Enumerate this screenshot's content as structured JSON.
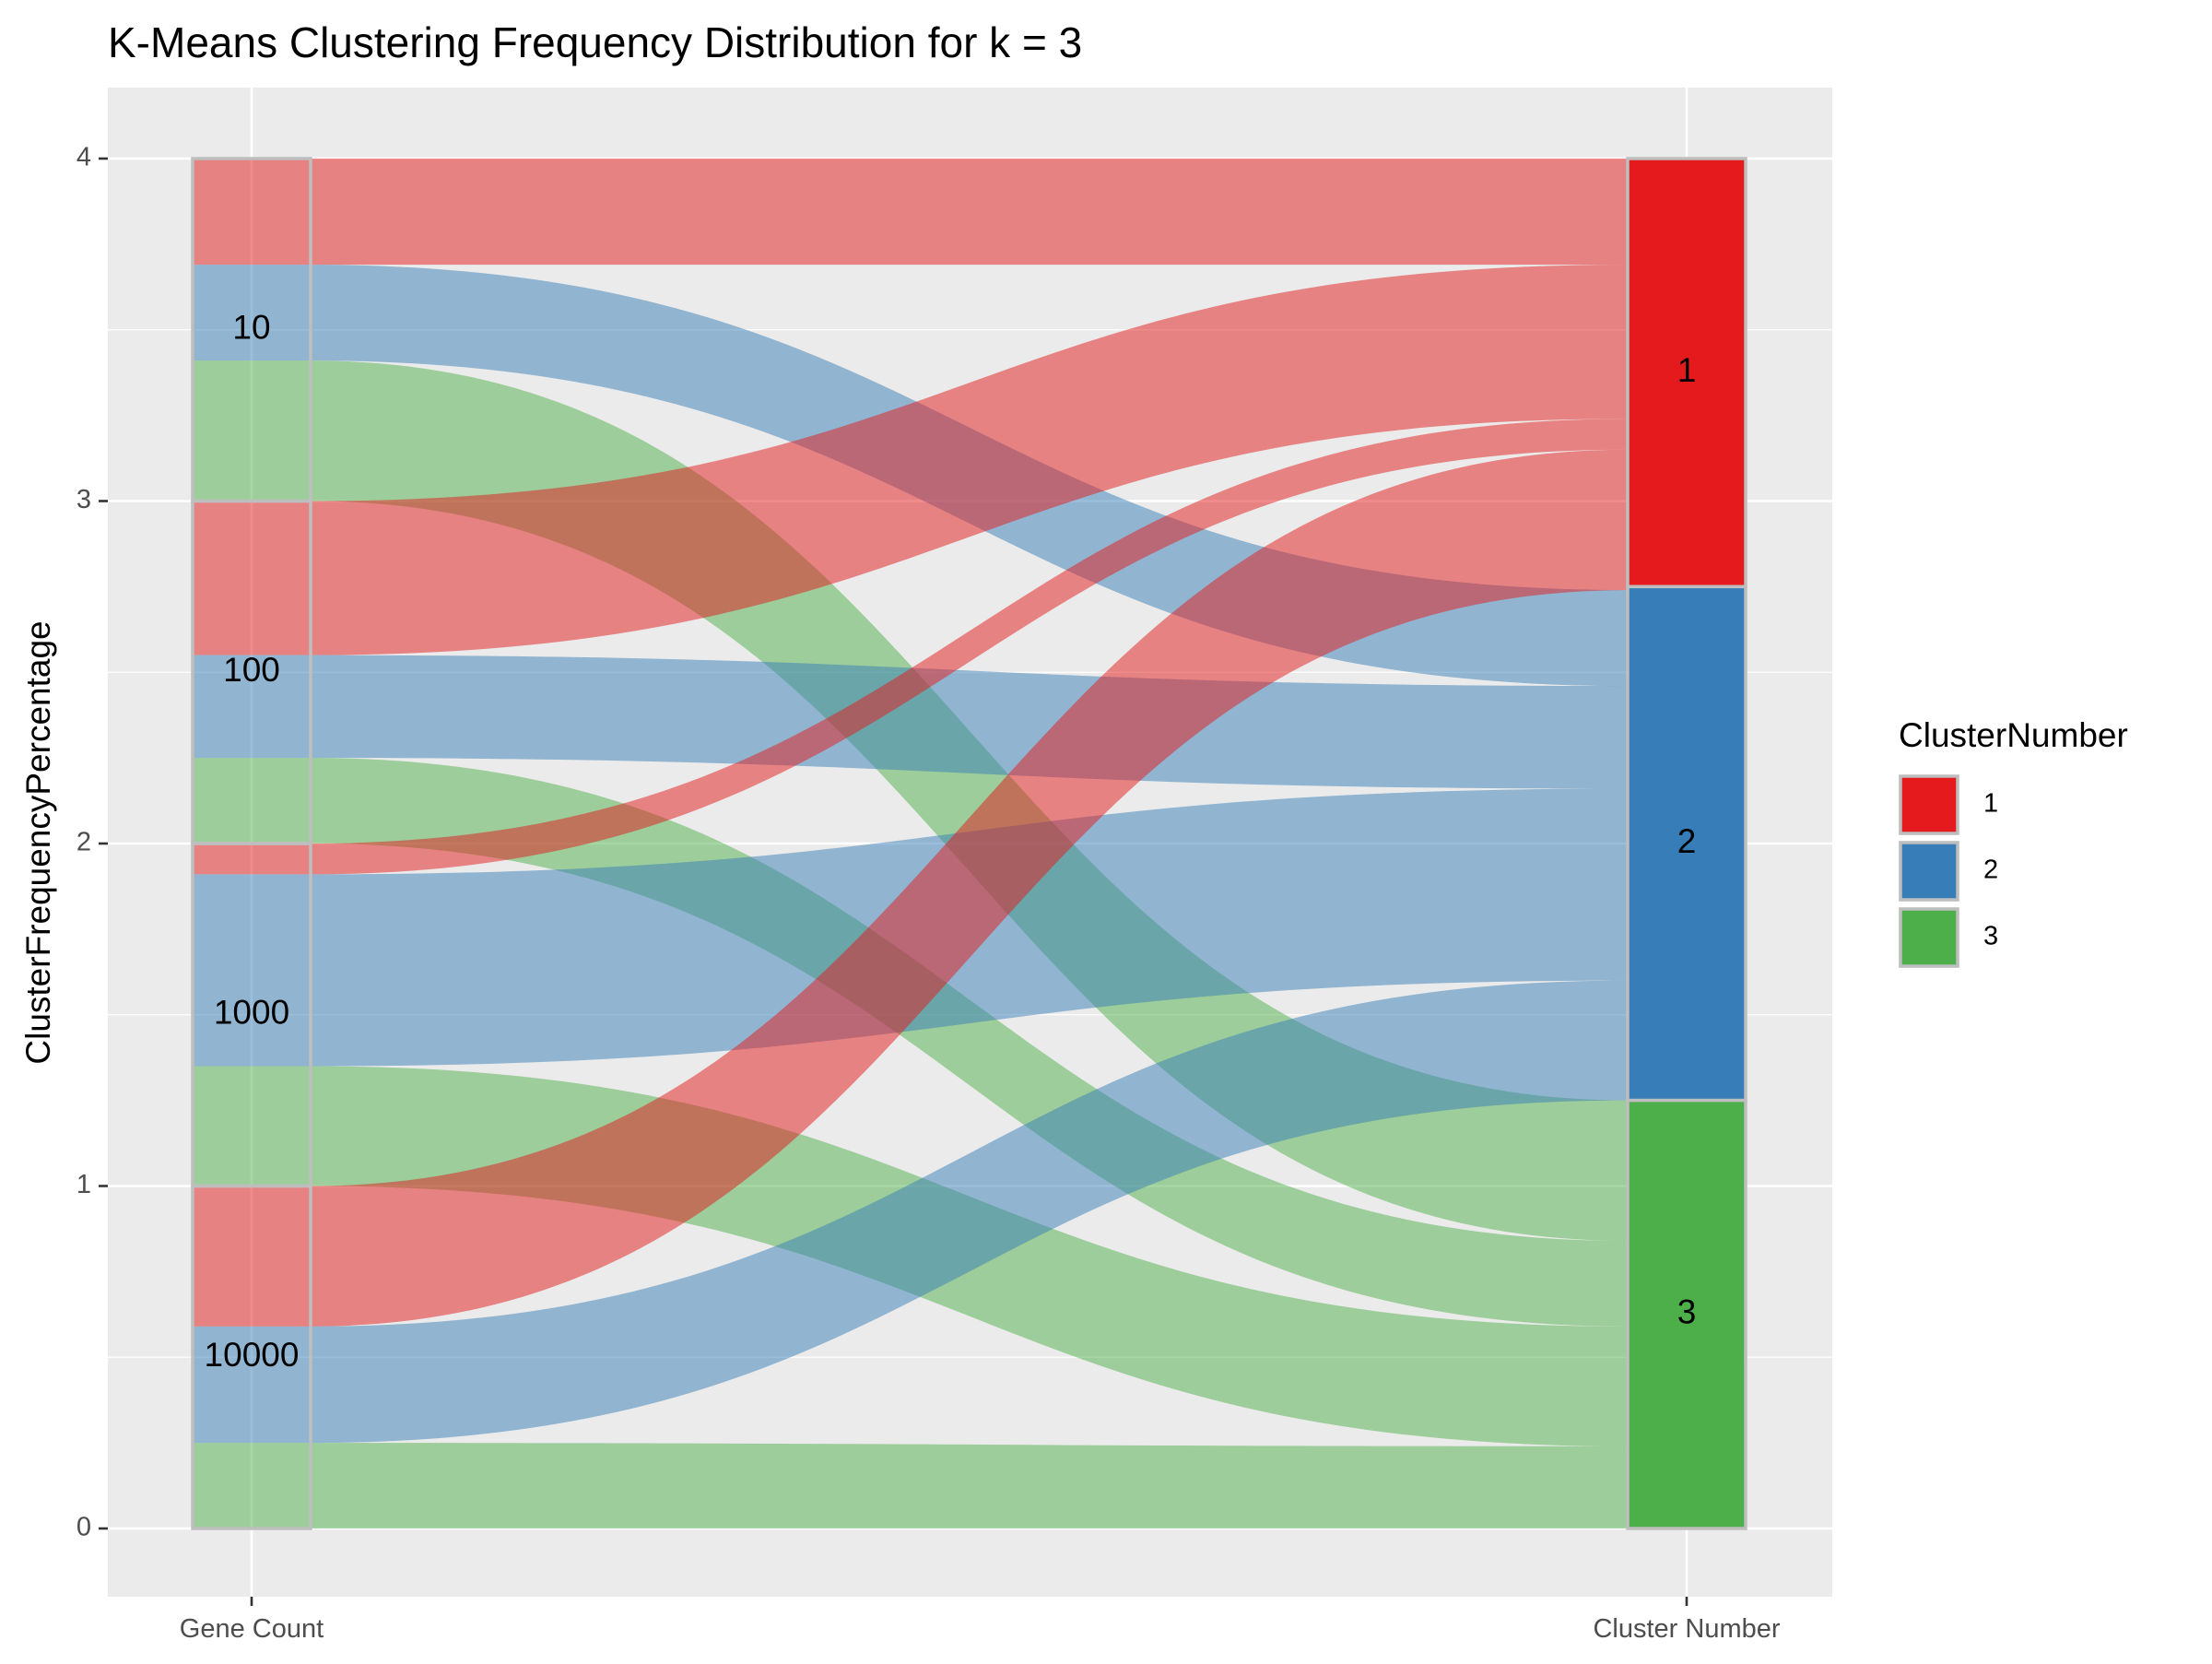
{
  "chart_data": {
    "type": "alluvial",
    "title": "K-Means Clustering Frequency Distribution for k = 3",
    "xlabel": "",
    "ylabel": "ClusterFrequencyPercentage",
    "ylim": [
      -0.2,
      4.2
    ],
    "y_ticks": [
      0,
      1,
      2,
      3,
      4
    ],
    "y_tick_labels": [
      "0",
      "1",
      "2",
      "3",
      "4"
    ],
    "axes": [
      "Gene Count",
      "Cluster Number"
    ],
    "grid": true,
    "legend": {
      "title": "ClusterNumber",
      "placement": "right",
      "entries": [
        {
          "label": "1",
          "color": "#E41A1C"
        },
        {
          "label": "2",
          "color": "#377EB8"
        },
        {
          "label": "3",
          "color": "#4DAF4A"
        }
      ]
    },
    "left_strata": [
      {
        "label": "10",
        "ymin": 3,
        "ymax": 4
      },
      {
        "label": "100",
        "ymin": 2,
        "ymax": 3
      },
      {
        "label": "1000",
        "ymin": 1,
        "ymax": 2
      },
      {
        "label": "10000",
        "ymin": 0,
        "ymax": 1
      }
    ],
    "right_strata": [
      {
        "label": "1",
        "cluster": 1,
        "ymin": 2.75,
        "ymax": 4
      },
      {
        "label": "2",
        "cluster": 2,
        "ymin": 1.25,
        "ymax": 2.75
      },
      {
        "label": "3",
        "cluster": 3,
        "ymin": 0,
        "ymax": 1.25
      }
    ],
    "flows": [
      {
        "gene_count": "10",
        "cluster": 1,
        "value": 0.31,
        "left": [
          3.69,
          4.0
        ],
        "right": [
          3.69,
          4.0
        ]
      },
      {
        "gene_count": "10",
        "cluster": 2,
        "value": 0.28,
        "left": [
          3.41,
          3.69
        ],
        "right": [
          2.46,
          2.74
        ]
      },
      {
        "gene_count": "10",
        "cluster": 3,
        "value": 0.41,
        "left": [
          3.0,
          3.41
        ],
        "right": [
          0.84,
          1.25
        ]
      },
      {
        "gene_count": "100",
        "cluster": 1,
        "value": 0.45,
        "left": [
          2.55,
          3.0
        ],
        "right": [
          3.24,
          3.69
        ]
      },
      {
        "gene_count": "100",
        "cluster": 2,
        "value": 0.3,
        "left": [
          2.25,
          2.55
        ],
        "right": [
          2.16,
          2.46
        ]
      },
      {
        "gene_count": "100",
        "cluster": 3,
        "value": 0.25,
        "left": [
          2.0,
          2.25
        ],
        "right": [
          0.59,
          0.84
        ]
      },
      {
        "gene_count": "1000",
        "cluster": 1,
        "value": 0.09,
        "left": [
          1.91,
          2.0
        ],
        "right": [
          3.15,
          3.24
        ]
      },
      {
        "gene_count": "1000",
        "cluster": 2,
        "value": 0.56,
        "left": [
          1.35,
          1.91
        ],
        "right": [
          1.6,
          2.16
        ]
      },
      {
        "gene_count": "1000",
        "cluster": 3,
        "value": 0.35,
        "left": [
          1.0,
          1.35
        ],
        "right": [
          0.24,
          0.59
        ]
      },
      {
        "gene_count": "10000",
        "cluster": 1,
        "value": 0.41,
        "left": [
          0.59,
          1.0
        ],
        "right": [
          2.74,
          3.15
        ]
      },
      {
        "gene_count": "10000",
        "cluster": 2,
        "value": 0.35,
        "left": [
          0.25,
          0.59
        ],
        "right": [
          1.25,
          1.6
        ]
      },
      {
        "gene_count": "10000",
        "cluster": 3,
        "value": 0.25,
        "left": [
          0.0,
          0.25
        ],
        "right": [
          0.0,
          0.24
        ]
      }
    ]
  }
}
